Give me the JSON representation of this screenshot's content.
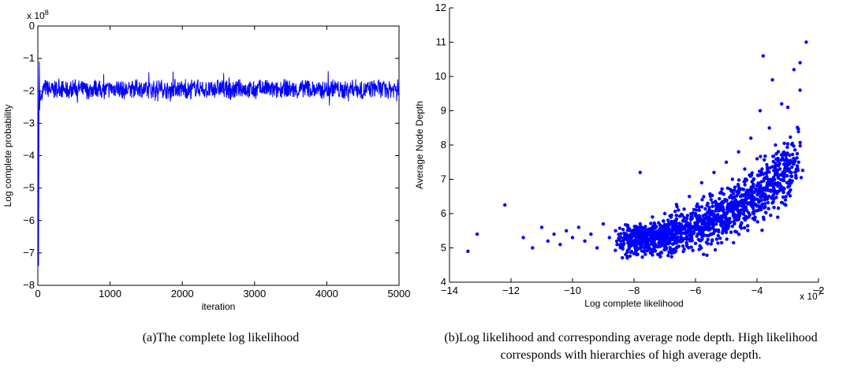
{
  "chart_data": [
    {
      "type": "line",
      "xlabel": "iteration",
      "ylabel": "Log complete probability",
      "exponent_label": "x 10",
      "exponent_power": "8",
      "xlim": [
        0,
        5000
      ],
      "ylim": [
        -8,
        0
      ],
      "xticks": [
        0,
        1000,
        2000,
        3000,
        4000,
        5000
      ],
      "yticks": [
        0,
        -1,
        -2,
        -3,
        -4,
        -5,
        -6,
        -7,
        -8
      ],
      "grid": false,
      "color": "#0000ff",
      "series": [
        {
          "x": [
            0,
            5,
            10,
            15,
            20,
            25,
            30,
            40,
            60,
            100,
            200,
            300,
            400,
            500,
            600,
            700,
            800,
            900,
            1000,
            1100,
            1200,
            1300,
            1400,
            1500,
            1600,
            1700,
            1800,
            1900,
            2000,
            2100,
            2200,
            2300,
            2400,
            2500,
            2600,
            2700,
            2800,
            2900,
            3000,
            3100,
            3200,
            3300,
            3400,
            3500,
            3600,
            3700,
            3800,
            3900,
            4000,
            4100,
            4200,
            4300,
            4400,
            4500,
            4600,
            4700,
            4800,
            4900,
            5000
          ],
          "y": [
            -1.2,
            -3.2,
            -7.4,
            -2.5,
            -1.1,
            -2.6,
            -2.0,
            -2.3,
            -2.0,
            -1.9,
            -2.0,
            -1.9,
            -2.0,
            -1.9,
            -1.95,
            -2.0,
            -1.9,
            -2.0,
            -1.95,
            -1.9,
            -2.0,
            -1.95,
            -1.9,
            -2.0,
            -1.95,
            -1.9,
            -2.0,
            -1.9,
            -1.95,
            -2.0,
            -1.9,
            -1.95,
            -2.0,
            -1.9,
            -1.95,
            -2.0,
            -1.9,
            -1.95,
            -2.0,
            -1.9,
            -1.95,
            -2.0,
            -1.9,
            -1.95,
            -2.0,
            -1.9,
            -1.95,
            -2.0,
            -1.95,
            -1.9,
            -2.0,
            -1.95,
            -1.9,
            -2.0,
            -1.95,
            -1.9,
            -2.0,
            -1.95,
            -1.9
          ]
        }
      ]
    },
    {
      "type": "scatter",
      "xlabel": "Log complete likelihood",
      "ylabel": "Average Node Depth",
      "exponent_label": "x 10",
      "exponent_power": "7",
      "xlim": [
        -14,
        -2
      ],
      "ylim": [
        4,
        12
      ],
      "xticks": [
        -14,
        -12,
        -10,
        -8,
        -6,
        -4,
        -2
      ],
      "yticks": [
        4,
        5,
        6,
        7,
        8,
        9,
        10,
        11,
        12
      ],
      "grid": false,
      "color": "#0000ff",
      "series": [
        {
          "points": [
            [
              -13.4,
              4.9
            ],
            [
              -13.1,
              5.4
            ],
            [
              -12.2,
              6.25
            ],
            [
              -11.6,
              5.3
            ],
            [
              -11.3,
              5.0
            ],
            [
              -11.0,
              5.6
            ],
            [
              -10.8,
              5.2
            ],
            [
              -10.6,
              5.4
            ],
            [
              -10.4,
              5.1
            ],
            [
              -10.2,
              5.5
            ],
            [
              -10.0,
              5.3
            ],
            [
              -9.8,
              5.6
            ],
            [
              -9.6,
              5.2
            ],
            [
              -9.4,
              5.4
            ],
            [
              -9.2,
              5.0
            ],
            [
              -9.0,
              5.7
            ],
            [
              -8.8,
              5.3
            ],
            [
              -8.6,
              5.5
            ],
            [
              -8.4,
              5.1
            ],
            [
              -8.2,
              5.6
            ],
            [
              -8.0,
              5.4
            ],
            [
              -7.8,
              7.2
            ],
            [
              -7.8,
              5.7
            ],
            [
              -7.6,
              5.2
            ],
            [
              -7.4,
              5.9
            ],
            [
              -7.2,
              5.5
            ],
            [
              -7.0,
              6.0
            ],
            [
              -6.8,
              5.4
            ],
            [
              -6.6,
              6.2
            ],
            [
              -6.4,
              5.8
            ],
            [
              -6.2,
              6.5
            ],
            [
              -6.0,
              6.0
            ],
            [
              -5.8,
              6.9
            ],
            [
              -5.6,
              6.3
            ],
            [
              -5.4,
              7.2
            ],
            [
              -5.2,
              6.6
            ],
            [
              -5.0,
              7.5
            ],
            [
              -4.8,
              7.0
            ],
            [
              -4.6,
              7.8
            ],
            [
              -4.4,
              7.3
            ],
            [
              -4.2,
              8.2
            ],
            [
              -4.0,
              7.6
            ],
            [
              -3.9,
              9.0
            ],
            [
              -3.8,
              10.6
            ],
            [
              -3.6,
              8.5
            ],
            [
              -3.5,
              9.9
            ],
            [
              -3.4,
              8.0
            ],
            [
              -3.2,
              9.2
            ],
            [
              -3.0,
              9.1
            ],
            [
              -2.8,
              10.2
            ],
            [
              -2.6,
              10.4
            ],
            [
              -2.6,
              9.6
            ],
            [
              -2.4,
              11.0
            ]
          ]
        }
      ]
    }
  ],
  "captions": {
    "a": "(a)The complete log likelihood",
    "b": "(b)Log likelihood and corresponding average node depth. High likelihood corresponds with hierarchies of high average depth."
  }
}
